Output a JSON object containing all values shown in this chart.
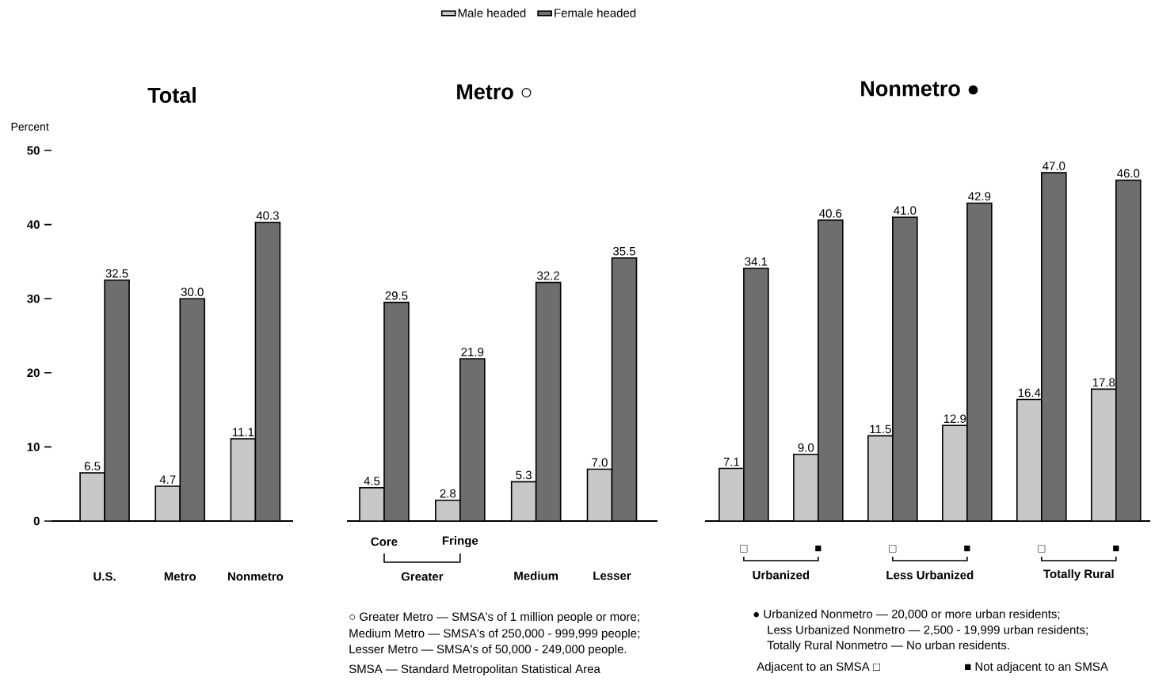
{
  "chart_data": [
    {
      "type": "bar",
      "title": "Total",
      "ylabel": "Percent",
      "categories": [
        "U.S.",
        "Metro",
        "Nonmetro"
      ],
      "series": [
        {
          "color": "#c8c8c8",
          "values": [
            6.5,
            4.7,
            11.1
          ],
          "value_labels": [
            "6.5",
            "4.7",
            "11.1"
          ]
        },
        {
          "color": "#6e6e6e",
          "values": [
            32.5,
            30.0,
            40.3
          ],
          "value_labels": [
            "32.5",
            "30.0",
            "40.3"
          ]
        }
      ],
      "ylim": [
        0,
        50
      ],
      "yticks": [
        0,
        10,
        20,
        30,
        40,
        50
      ]
    },
    {
      "type": "bar",
      "title": "Metro ○",
      "categories": [
        "Core",
        "Fringe",
        "Medium",
        "Lesser"
      ],
      "series": [
        {
          "name": "Male headed",
          "color": "#c8c8c8",
          "values": [
            4.5,
            2.8,
            5.3,
            7.0
          ],
          "value_labels": [
            "4.5",
            "2.8",
            "5.3",
            "7.0"
          ]
        },
        {
          "name": "Female headed",
          "color": "#6e6e6e",
          "values": [
            29.5,
            21.9,
            32.2,
            35.5
          ],
          "value_labels": [
            "29.5",
            "21.9",
            "32.2",
            "35.5"
          ]
        }
      ],
      "ylim": [
        0,
        50
      ],
      "tick_labels": "x",
      "legend": "top",
      "annotations": [
        "Greater",
        "○ Greater Metro — SMSA's of 1 million people or more;",
        "Medium Metro — SMSA's of 250,000 - 999,999 people;",
        "Lesser Metro — SMSA's of 50,000 - 249,000 people.",
        "SMSA — Standard Metropolitan Statistical Area"
      ]
    },
    {
      "type": "bar",
      "title": "Nonmetro ●",
      "categories": [
        "□",
        "■",
        "□",
        "■",
        "□",
        "■"
      ],
      "series": [
        {
          "color": "#c8c8c8",
          "values": [
            7.1,
            9.0,
            11.5,
            12.9,
            16.4,
            17.8
          ],
          "value_labels": [
            "7.1",
            "9.0",
            "11.5",
            "12.9",
            "16.4",
            "17.8"
          ]
        },
        {
          "color": "#6e6e6e",
          "values": [
            34.1,
            40.6,
            41.0,
            42.9,
            47.0,
            46.0
          ],
          "value_labels": [
            "34.1",
            "40.6",
            "41.0",
            "42.9",
            "47.0",
            "46.0"
          ]
        }
      ],
      "ylim": [
        0,
        50
      ],
      "tick_labels": "x",
      "annotations": [
        "Urbanized",
        "Less Urbanized",
        "Totally Rural",
        "● Urbanized Nonmetro — 20,000 or more urban residents;",
        "Less Urbanized Nonmetro — 2,500 - 19,999 urban residents;",
        "Totally Rural Nonmetro — No urban residents.",
        "Adjacent to an SMSA □",
        "■ Not adjacent to an SMSA"
      ]
    }
  ]
}
